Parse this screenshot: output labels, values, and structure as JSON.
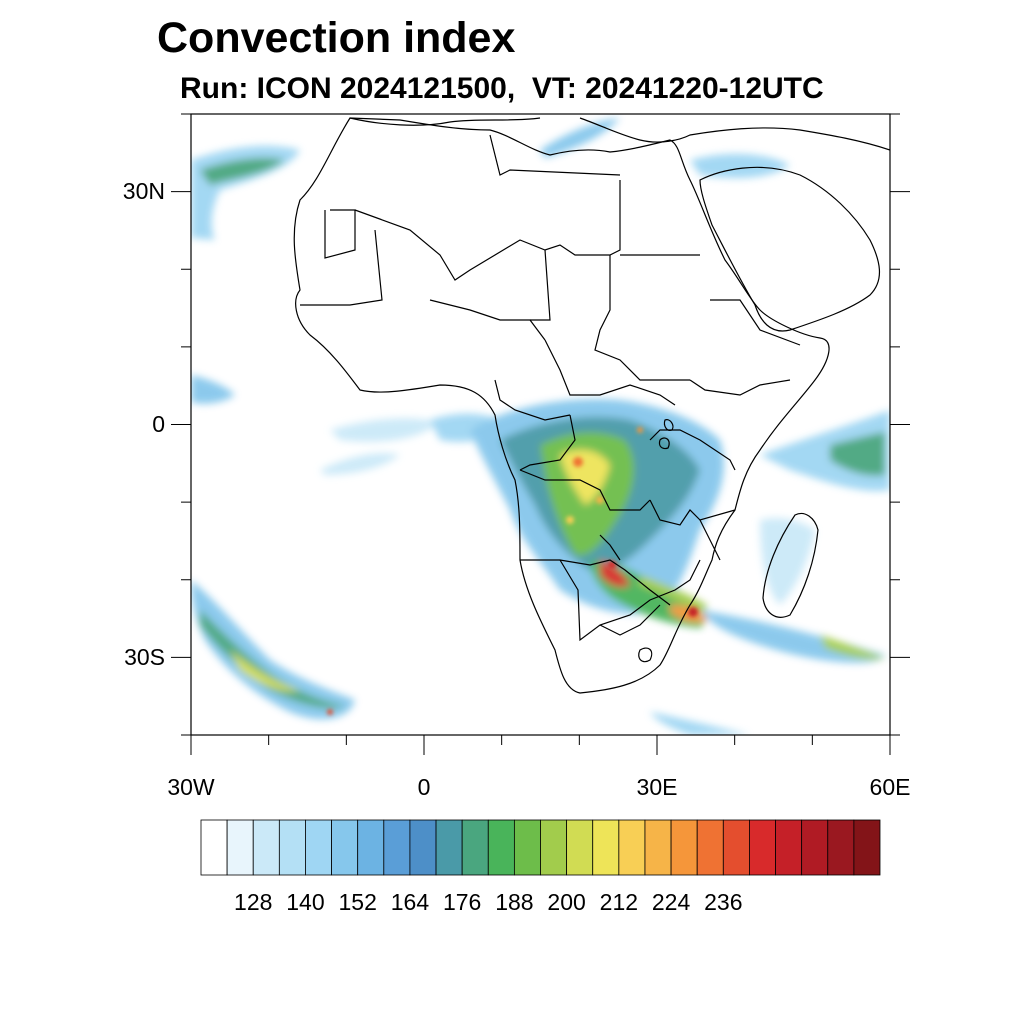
{
  "title": "Convection index",
  "subtitle": "Run: ICON 2024121500,  VT: 20241220-12UTC",
  "map": {
    "lon_range": [
      -30,
      60
    ],
    "lat_range": [
      -40,
      40
    ],
    "lon_ticks": [
      {
        "value": -30,
        "label": "30W"
      },
      {
        "value": 0,
        "label": "0"
      },
      {
        "value": 30,
        "label": "30E"
      },
      {
        "value": 60,
        "label": "60E"
      }
    ],
    "lat_ticks": [
      {
        "value": 30,
        "label": "30N"
      },
      {
        "value": 0,
        "label": "0"
      },
      {
        "value": -30,
        "label": "30S"
      }
    ]
  },
  "colorbar": {
    "colors": [
      "#ffffff",
      "#e8f5fc",
      "#cbe9f8",
      "#b4e0f5",
      "#9fd6f3",
      "#86c7ec",
      "#6cb3e3",
      "#5a9ed7",
      "#4d8fc8",
      "#4a9aa8",
      "#4aa67f",
      "#49b45a",
      "#6dbd4a",
      "#a2cc4c",
      "#d1dc53",
      "#eee458",
      "#f8cf55",
      "#f6b448",
      "#f5963a",
      "#ef7233",
      "#e44e2e",
      "#d82a2b",
      "#c52028",
      "#b01b24",
      "#9a1820",
      "#831418"
    ],
    "tick_labels": [
      "128",
      "140",
      "152",
      "164",
      "176",
      "188",
      "200",
      "212",
      "224",
      "236"
    ]
  },
  "convection_regions": [
    {
      "lon": 17,
      "lat": -6,
      "level": 14,
      "size": 7
    },
    {
      "lon": 23,
      "lat": -17,
      "level": 17,
      "size": 4
    },
    {
      "lon": 35,
      "lat": -24,
      "level": 22,
      "size": 2
    }
  ]
}
